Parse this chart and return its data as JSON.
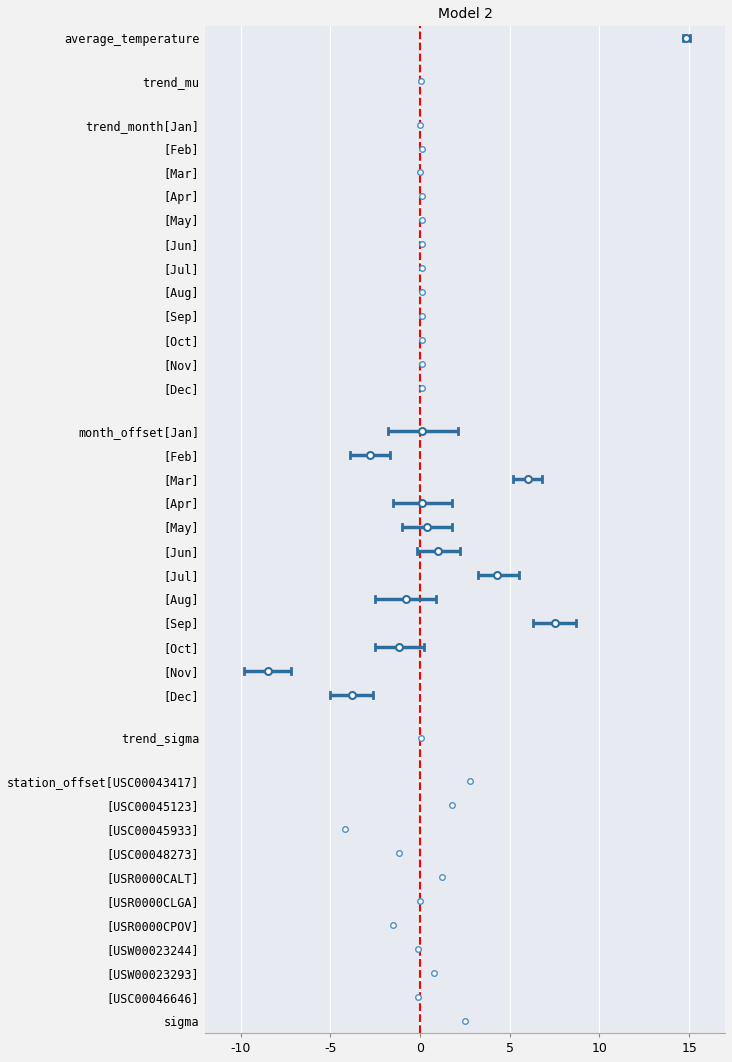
{
  "title": "Model 2",
  "xlim": [
    -12,
    17
  ],
  "xticks": [
    -10,
    -5,
    0,
    5,
    10,
    15
  ],
  "bg_color": "#E8EAF2",
  "fig_bg_color": "#F2F2F2",
  "marker_color": "#4A90C4",
  "line_color": "#2E6E9E",
  "vline_color": "red",
  "rows": [
    {
      "label": "average_temperature",
      "mean": 14.85,
      "lo": 14.65,
      "hi": 15.05,
      "has_ci": true
    },
    {
      "label": "trend_mu",
      "mean": 0.05,
      "lo": null,
      "hi": null,
      "has_ci": false
    },
    {
      "label": "trend_month[Jan]",
      "mean": 0.0,
      "lo": null,
      "hi": null,
      "has_ci": false
    },
    {
      "label": "[Feb]",
      "mean": 0.1,
      "lo": null,
      "hi": null,
      "has_ci": false
    },
    {
      "label": "[Mar]",
      "mean": 0.0,
      "lo": null,
      "hi": null,
      "has_ci": false
    },
    {
      "label": "[Apr]",
      "mean": 0.1,
      "lo": null,
      "hi": null,
      "has_ci": false
    },
    {
      "label": "[May]",
      "mean": 0.1,
      "lo": null,
      "hi": null,
      "has_ci": false
    },
    {
      "label": "[Jun]",
      "mean": 0.1,
      "lo": null,
      "hi": null,
      "has_ci": false
    },
    {
      "label": "[Jul]",
      "mean": 0.1,
      "lo": null,
      "hi": null,
      "has_ci": false
    },
    {
      "label": "[Aug]",
      "mean": 0.1,
      "lo": null,
      "hi": null,
      "has_ci": false
    },
    {
      "label": "[Sep]",
      "mean": 0.1,
      "lo": null,
      "hi": null,
      "has_ci": false
    },
    {
      "label": "[Oct]",
      "mean": 0.1,
      "lo": null,
      "hi": null,
      "has_ci": false
    },
    {
      "label": "[Nov]",
      "mean": 0.1,
      "lo": null,
      "hi": null,
      "has_ci": false
    },
    {
      "label": "[Dec]",
      "mean": 0.1,
      "lo": null,
      "hi": null,
      "has_ci": false
    },
    {
      "label": "month_offset[Jan]",
      "mean": 0.1,
      "lo": -1.8,
      "hi": 2.1,
      "has_ci": true
    },
    {
      "label": "[Feb]",
      "mean": -2.8,
      "lo": -3.9,
      "hi": -1.7,
      "has_ci": true
    },
    {
      "label": "[Mar]",
      "mean": 6.0,
      "lo": 5.2,
      "hi": 6.8,
      "has_ci": true
    },
    {
      "label": "[Apr]",
      "mean": 0.1,
      "lo": -1.5,
      "hi": 1.8,
      "has_ci": true
    },
    {
      "label": "[May]",
      "mean": 0.4,
      "lo": -1.0,
      "hi": 1.8,
      "has_ci": true
    },
    {
      "label": "[Jun]",
      "mean": 1.0,
      "lo": -0.2,
      "hi": 2.2,
      "has_ci": true
    },
    {
      "label": "[Jul]",
      "mean": 4.3,
      "lo": 3.2,
      "hi": 5.5,
      "has_ci": true
    },
    {
      "label": "[Aug]",
      "mean": -0.8,
      "lo": -2.5,
      "hi": 0.9,
      "has_ci": true
    },
    {
      "label": "[Sep]",
      "mean": 7.5,
      "lo": 6.3,
      "hi": 8.7,
      "has_ci": true
    },
    {
      "label": "[Oct]",
      "mean": -1.2,
      "lo": -2.5,
      "hi": 0.2,
      "has_ci": true
    },
    {
      "label": "[Nov]",
      "mean": -8.5,
      "lo": -9.8,
      "hi": -7.2,
      "has_ci": true
    },
    {
      "label": "[Dec]",
      "mean": -3.8,
      "lo": -5.0,
      "hi": -2.6,
      "has_ci": true
    },
    {
      "label": "trend_sigma",
      "mean": 0.05,
      "lo": null,
      "hi": null,
      "has_ci": false
    },
    {
      "label": "station_offset[USC00043417]",
      "mean": 2.8,
      "lo": null,
      "hi": null,
      "has_ci": false
    },
    {
      "label": "[USC00045123]",
      "mean": 1.8,
      "lo": null,
      "hi": null,
      "has_ci": false
    },
    {
      "label": "[USC00045933]",
      "mean": -4.2,
      "lo": null,
      "hi": null,
      "has_ci": false
    },
    {
      "label": "[USC00048273]",
      "mean": -1.2,
      "lo": null,
      "hi": null,
      "has_ci": false
    },
    {
      "label": "[USR0000CALT]",
      "mean": 1.2,
      "lo": null,
      "hi": null,
      "has_ci": false
    },
    {
      "label": "[USR0000CLGA]",
      "mean": 0.0,
      "lo": null,
      "hi": null,
      "has_ci": false
    },
    {
      "label": "[USR0000CPOV]",
      "mean": -1.5,
      "lo": null,
      "hi": null,
      "has_ci": false
    },
    {
      "label": "[USW00023244]",
      "mean": -0.1,
      "lo": null,
      "hi": null,
      "has_ci": false
    },
    {
      "label": "[USW00023293]",
      "mean": 0.8,
      "lo": null,
      "hi": null,
      "has_ci": false
    },
    {
      "label": "[USC00046646]",
      "mean": -0.1,
      "lo": null,
      "hi": null,
      "has_ci": false
    },
    {
      "label": "sigma",
      "mean": 2.5,
      "lo": null,
      "hi": null,
      "has_ci": false
    }
  ],
  "spacer_after": [
    0,
    1,
    13,
    25,
    26,
    37
  ]
}
